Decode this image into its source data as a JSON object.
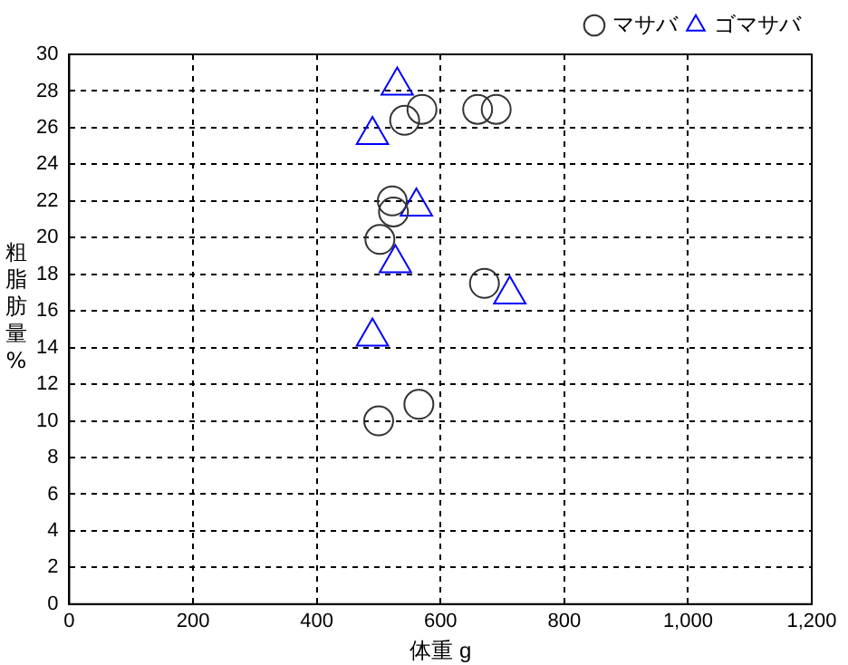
{
  "chart_data": {
    "type": "scatter",
    "xlabel": "体重 g",
    "ylabel": "粗脂肪量%",
    "xlim": [
      0,
      1200
    ],
    "xticks": [
      0,
      200,
      400,
      600,
      800,
      {
        "value": 1000,
        "label": "1,000"
      },
      {
        "value": 1200,
        "label": "1,200"
      }
    ],
    "ylim": [
      0,
      30
    ],
    "yticks": [
      0,
      2,
      4,
      6,
      8,
      10,
      12,
      14,
      16,
      18,
      20,
      22,
      24,
      26,
      28,
      30
    ],
    "grid": true,
    "legend": "top right",
    "series": [
      {
        "name": "マサバ",
        "color": "#333333",
        "marker": "circle",
        "x": [
          570,
          542,
          660,
          690,
          522,
          524,
          502,
          671,
          500,
          565
        ],
        "values": [
          27.0,
          26.4,
          27.0,
          27.0,
          22.0,
          21.4,
          19.9,
          17.5,
          10.0,
          10.9
        ]
      },
      {
        "name": "ゴマサバ",
        "color": "#0000ff",
        "marker": "triangle",
        "x": [
          530,
          490,
          561,
          527,
          712,
          490
        ],
        "values": [
          28.3,
          25.6,
          21.7,
          18.6,
          16.9,
          14.6
        ]
      }
    ]
  }
}
